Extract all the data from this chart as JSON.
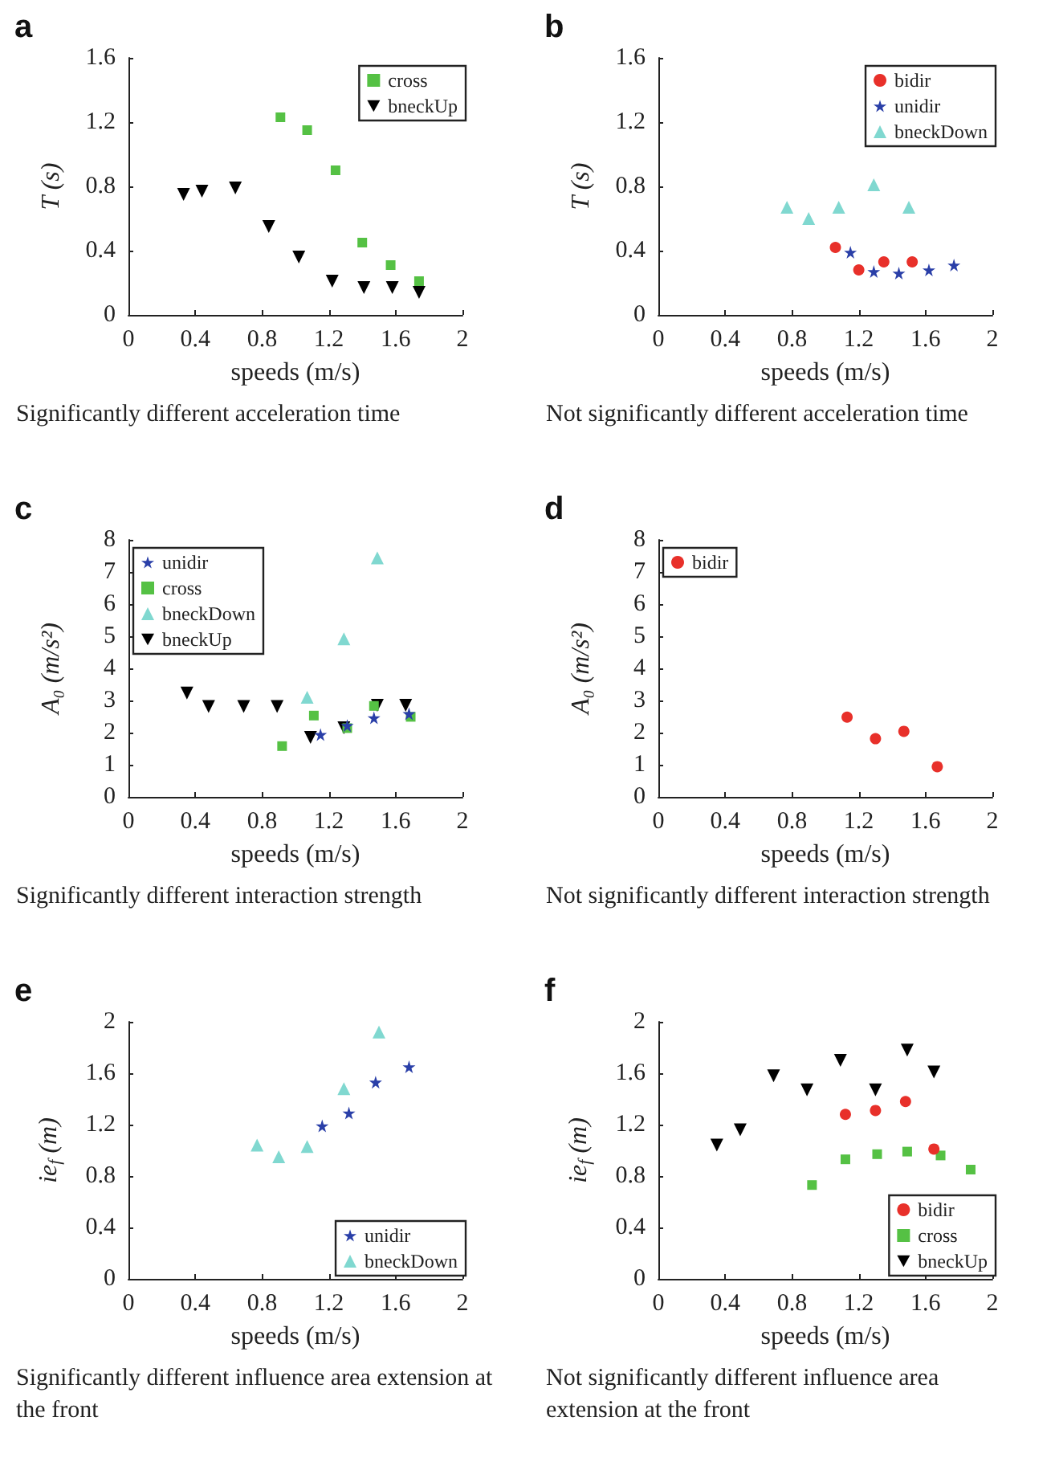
{
  "chart_data": [
    {
      "type": "scatter",
      "title": "a",
      "xlabel": "speeds (m/s)",
      "ylabel": "T (s)",
      "annotations": [
        "Significantly different acceleration time"
      ],
      "xlim": [
        0,
        2
      ],
      "xticks": [
        0,
        0.4,
        0.8,
        1.2,
        1.6,
        2
      ],
      "ylim": [
        0,
        1.6
      ],
      "yticks": [
        0,
        0.4,
        0.8,
        1.2,
        1.6
      ],
      "grid": false,
      "legend": "top right",
      "series": [
        {
          "name": "cross",
          "color": "#55c144",
          "marker": "square",
          "x": [
            0.91,
            1.07,
            1.24,
            1.4,
            1.57,
            1.74
          ],
          "values": [
            1.23,
            1.15,
            0.9,
            0.45,
            0.31,
            0.21
          ]
        },
        {
          "name": "bneckUp",
          "color": "#000000",
          "marker": "triangle-down",
          "x": [
            0.33,
            0.44,
            0.64,
            0.84,
            1.02,
            1.22,
            1.41,
            1.58,
            1.74
          ],
          "values": [
            0.75,
            0.77,
            0.79,
            0.55,
            0.36,
            0.21,
            0.17,
            0.17,
            0.14
          ]
        }
      ]
    },
    {
      "type": "scatter",
      "title": "b",
      "xlabel": "speeds (m/s)",
      "ylabel": "T (s)",
      "annotations": [
        "Not significantly different acceleration time"
      ],
      "xlim": [
        0,
        2
      ],
      "xticks": [
        0,
        0.4,
        0.8,
        1.2,
        1.6,
        2
      ],
      "ylim": [
        0,
        1.6
      ],
      "yticks": [
        0,
        0.4,
        0.8,
        1.2,
        1.6
      ],
      "grid": false,
      "legend": "top right",
      "series": [
        {
          "name": "bidir",
          "color": "#e8302a",
          "marker": "circle",
          "x": [
            1.06,
            1.2,
            1.35,
            1.52
          ],
          "values": [
            0.42,
            0.28,
            0.33,
            0.33
          ]
        },
        {
          "name": "unidir",
          "color": "#2a3fa8",
          "marker": "star",
          "x": [
            1.15,
            1.29,
            1.44,
            1.62,
            1.77
          ],
          "values": [
            0.39,
            0.27,
            0.26,
            0.28,
            0.31
          ]
        },
        {
          "name": "bneckDown",
          "color": "#80d8d0",
          "marker": "triangle",
          "x": [
            0.77,
            0.9,
            1.08,
            1.29,
            1.5
          ],
          "values": [
            0.67,
            0.6,
            0.67,
            0.81,
            0.67
          ]
        }
      ]
    },
    {
      "type": "scatter",
      "title": "c",
      "xlabel": "speeds (m/s)",
      "ylabel": "A₀ (m/s²)",
      "annotations": [
        "Significantly different interaction strength"
      ],
      "xlim": [
        0,
        2
      ],
      "xticks": [
        0,
        0.4,
        0.8,
        1.2,
        1.6,
        2
      ],
      "ylim": [
        0,
        8
      ],
      "yticks": [
        0,
        1,
        2,
        3,
        4,
        5,
        6,
        7,
        8
      ],
      "grid": false,
      "legend": "top left",
      "series": [
        {
          "name": "unidir",
          "color": "#2a3fa8",
          "marker": "star",
          "x": [
            1.15,
            1.31,
            1.47,
            1.68
          ],
          "values": [
            1.94,
            2.22,
            2.46,
            2.59
          ]
        },
        {
          "name": "cross",
          "color": "#55c144",
          "marker": "square",
          "x": [
            0.92,
            1.11,
            1.31,
            1.47,
            1.69
          ],
          "values": [
            1.58,
            2.53,
            2.14,
            2.83,
            2.49
          ]
        },
        {
          "name": "bneckDown",
          "color": "#80d8d0",
          "marker": "triangle",
          "x": [
            1.07,
            1.29,
            1.49
          ],
          "values": [
            3.1,
            4.92,
            7.44
          ]
        },
        {
          "name": "bneckUp",
          "color": "#000000",
          "marker": "triangle-down",
          "x": [
            0.35,
            0.48,
            0.69,
            0.89,
            1.09,
            1.29,
            1.49,
            1.66
          ],
          "values": [
            3.23,
            2.81,
            2.81,
            2.81,
            1.85,
            2.15,
            2.85,
            2.85
          ]
        }
      ]
    },
    {
      "type": "scatter",
      "title": "d",
      "xlabel": "speeds (m/s)",
      "ylabel": "A₀ (m/s²)",
      "annotations": [
        "Not significantly different interaction strength"
      ],
      "xlim": [
        0,
        2
      ],
      "xticks": [
        0,
        0.4,
        0.8,
        1.2,
        1.6,
        2
      ],
      "ylim": [
        0,
        8
      ],
      "yticks": [
        0,
        1,
        2,
        3,
        4,
        5,
        6,
        7,
        8
      ],
      "grid": false,
      "legend": "top left",
      "series": [
        {
          "name": "bidir",
          "color": "#e8302a",
          "marker": "circle",
          "x": [
            1.13,
            1.3,
            1.47,
            1.67
          ],
          "values": [
            2.48,
            1.81,
            2.04,
            0.94
          ]
        }
      ]
    },
    {
      "type": "scatter",
      "title": "e",
      "xlabel": "speeds (m/s)",
      "ylabel": "ie$_{f}$ (m)",
      "annotations": [
        "Significantly different influence area extension at the front"
      ],
      "xlim": [
        0,
        2
      ],
      "xticks": [
        0,
        0.4,
        0.8,
        1.2,
        1.6,
        2
      ],
      "ylim": [
        0,
        2
      ],
      "yticks": [
        0,
        0.4,
        0.8,
        1.2,
        1.6,
        2
      ],
      "grid": false,
      "legend": "bottom right",
      "series": [
        {
          "name": "unidir",
          "color": "#2a3fa8",
          "marker": "star",
          "x": [
            1.16,
            1.32,
            1.48,
            1.68
          ],
          "values": [
            1.19,
            1.29,
            1.53,
            1.65
          ]
        },
        {
          "name": "bneckDown",
          "color": "#80d8d0",
          "marker": "triangle",
          "x": [
            0.77,
            0.9,
            1.07,
            1.29,
            1.5
          ],
          "values": [
            1.04,
            0.95,
            1.03,
            1.48,
            1.92
          ]
        }
      ]
    },
    {
      "type": "scatter",
      "title": "f",
      "xlabel": "speeds (m/s)",
      "ylabel": "ie$_{f}$ (m)",
      "annotations": [
        "Not significantly different influence area extension at the front"
      ],
      "xlim": [
        0,
        2
      ],
      "xticks": [
        0,
        0.4,
        0.8,
        1.2,
        1.6,
        2
      ],
      "ylim": [
        0,
        2
      ],
      "yticks": [
        0,
        0.4,
        0.8,
        1.2,
        1.6,
        2
      ],
      "grid": false,
      "legend": "bottom right",
      "series": [
        {
          "name": "bidir",
          "color": "#e8302a",
          "marker": "circle",
          "x": [
            1.12,
            1.3,
            1.48,
            1.65
          ],
          "values": [
            1.28,
            1.31,
            1.38,
            1.01
          ]
        },
        {
          "name": "cross",
          "color": "#55c144",
          "marker": "square",
          "x": [
            0.92,
            1.12,
            1.31,
            1.49,
            1.69,
            1.87
          ],
          "values": [
            0.73,
            0.93,
            0.97,
            0.99,
            0.96,
            0.85
          ]
        },
        {
          "name": "bneckUp",
          "color": "#000000",
          "marker": "triangle-down",
          "x": [
            0.35,
            0.49,
            0.69,
            0.89,
            1.09,
            1.3,
            1.49,
            1.65
          ],
          "values": [
            1.04,
            1.16,
            1.58,
            1.47,
            1.7,
            1.47,
            1.78,
            1.61
          ]
        }
      ]
    }
  ]
}
